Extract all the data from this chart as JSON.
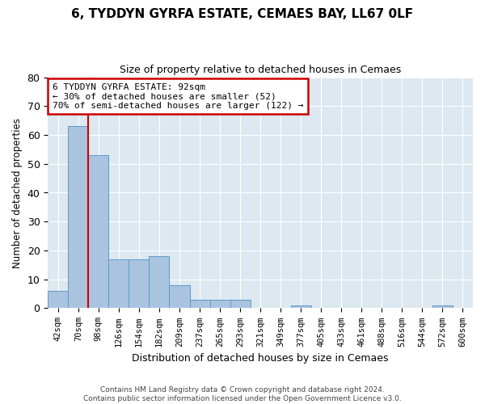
{
  "title1": "6, TYDDYN GYRFA ESTATE, CEMAES BAY, LL67 0LF",
  "title2": "Size of property relative to detached houses in Cemaes",
  "xlabel": "Distribution of detached houses by size in Cemaes",
  "ylabel": "Number of detached properties",
  "footer1": "Contains HM Land Registry data © Crown copyright and database right 2024.",
  "footer2": "Contains public sector information licensed under the Open Government Licence v3.0.",
  "bar_color": "#aac4e0",
  "bar_edge_color": "#5a9bc9",
  "background_color": "#dde8f0",
  "grid_color": "#ffffff",
  "annotation_box_color": "#cc0000",
  "vline_color": "#cc0000",
  "categories": [
    "42sqm",
    "70sqm",
    "98sqm",
    "126sqm",
    "154sqm",
    "182sqm",
    "209sqm",
    "237sqm",
    "265sqm",
    "293sqm",
    "321sqm",
    "349sqm",
    "377sqm",
    "405sqm",
    "433sqm",
    "461sqm",
    "488sqm",
    "516sqm",
    "544sqm",
    "572sqm",
    "600sqm"
  ],
  "values": [
    6,
    63,
    53,
    17,
    17,
    18,
    8,
    3,
    3,
    3,
    0,
    0,
    1,
    0,
    0,
    0,
    0,
    0,
    0,
    1,
    0
  ],
  "ylim": [
    0,
    80
  ],
  "yticks": [
    0,
    10,
    20,
    30,
    40,
    50,
    60,
    70,
    80
  ],
  "vline_pos": 1.5,
  "annotation_line1": "6 TYDDYN GYRFA ESTATE: 92sqm",
  "annotation_line2": "← 30% of detached houses are smaller (52)",
  "annotation_line3": "70% of semi-detached houses are larger (122) →"
}
